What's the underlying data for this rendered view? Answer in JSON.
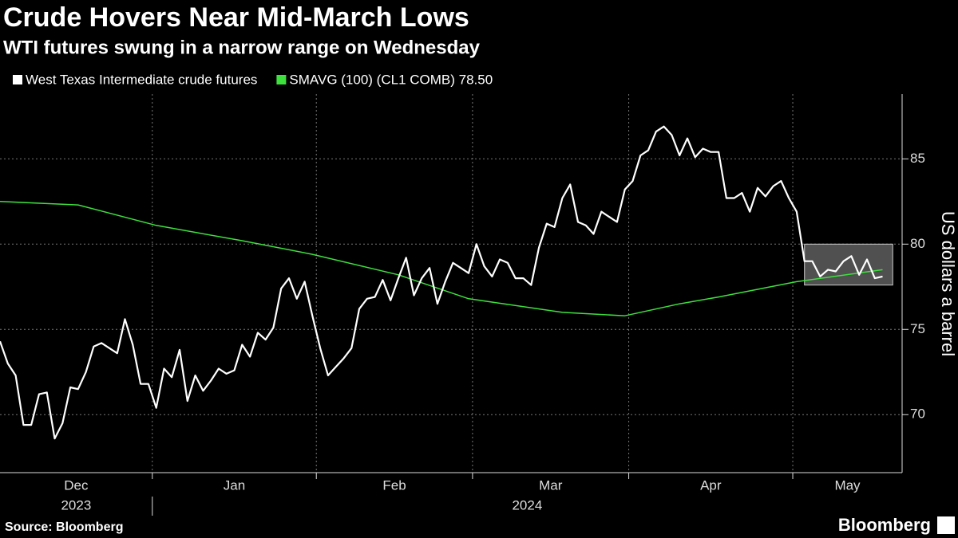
{
  "chart_data": {
    "type": "line",
    "title": "Crude Hovers Near Mid-March Lows",
    "subtitle": "WTI futures swung in a narrow range on Wednesday",
    "y_axis_label": "US dollars a barrel",
    "source": "Source: Bloomberg",
    "brand": "Bloomberg",
    "series": [
      {
        "name": "West Texas Intermediate crude futures",
        "color": "#ffffff",
        "x": [
          0,
          1,
          2,
          3,
          4,
          5,
          6,
          7,
          8,
          9,
          10,
          11,
          12,
          13,
          14,
          15,
          16,
          17,
          18,
          19,
          20,
          21,
          22,
          23,
          24,
          25,
          26,
          27,
          28,
          29,
          30,
          31,
          32,
          33,
          34,
          35,
          36,
          37,
          38,
          39,
          40,
          41,
          42,
          43,
          44,
          45,
          46,
          47,
          48,
          49,
          50,
          51,
          52,
          53,
          54,
          55,
          56,
          57,
          58,
          59,
          60,
          61,
          62,
          63,
          64,
          65,
          66,
          67,
          68,
          69,
          70,
          71,
          72,
          73,
          74,
          75,
          76,
          77,
          78,
          79,
          80,
          81,
          82,
          83,
          84,
          85,
          86,
          87,
          88,
          89,
          90,
          91,
          92,
          93,
          94,
          95,
          96,
          97,
          98,
          99,
          100,
          101,
          102,
          103,
          104,
          105,
          106,
          107,
          108,
          109,
          110,
          111,
          112,
          113
        ],
        "values": [
          74.3,
          73.0,
          72.3,
          69.4,
          69.4,
          71.2,
          71.3,
          68.6,
          69.5,
          71.6,
          71.5,
          72.5,
          74.0,
          74.2,
          73.9,
          73.6,
          75.6,
          74.1,
          71.8,
          71.8,
          70.4,
          72.7,
          72.2,
          73.8,
          70.8,
          72.3,
          71.4,
          72.0,
          72.7,
          72.4,
          72.6,
          74.1,
          73.4,
          74.8,
          74.4,
          75.1,
          77.4,
          78.0,
          76.8,
          77.8,
          75.8,
          73.9,
          72.3,
          72.8,
          73.3,
          73.9,
          76.2,
          76.8,
          76.9,
          77.9,
          76.7,
          78.0,
          79.2,
          77.0,
          78.0,
          78.6,
          76.5,
          77.8,
          78.9,
          78.6,
          78.3,
          80.0,
          78.7,
          78.1,
          79.1,
          78.9,
          78.0,
          78.0,
          77.6,
          79.8,
          81.2,
          81.0,
          82.7,
          83.5,
          81.3,
          81.1,
          80.6,
          81.9,
          81.6,
          81.3,
          83.2,
          83.7,
          85.2,
          85.5,
          86.6,
          86.9,
          86.4,
          85.2,
          86.2,
          85.1,
          85.6,
          85.4,
          85.4,
          82.7,
          82.7,
          83.0,
          81.9,
          83.3,
          82.8,
          83.4,
          83.7,
          82.7,
          81.9,
          79.0,
          79.0,
          78.1,
          78.5,
          78.4,
          79.0,
          79.3,
          78.2,
          79.1,
          78.0,
          78.1
        ]
      },
      {
        "name": "SMAVG (100) (CL1 COMB) 78.50",
        "color": "#3ee03e",
        "x": [
          0,
          10,
          20,
          31,
          40,
          51,
          60,
          72,
          80,
          87,
          92,
          102,
          113
        ],
        "values": [
          82.5,
          82.3,
          81.1,
          80.2,
          79.4,
          78.2,
          76.8,
          76.0,
          75.8,
          76.5,
          76.9,
          77.8,
          78.5
        ]
      }
    ],
    "xlim": [
      0,
      115.5
    ],
    "xticks": [
      19.5,
      40.5,
      60.5,
      80.5,
      101.5
    ],
    "xtick_labels": [
      "Dec",
      "Jan",
      "Feb",
      "Mar",
      "Apr",
      "May"
    ],
    "year_labels": [
      "2023",
      "2024"
    ],
    "ylim": [
      66.6,
      88.8
    ],
    "yticks": [
      70,
      75,
      80,
      85
    ],
    "grid": true,
    "highlight": {
      "xlim": [
        103,
        114.3
      ],
      "ylim": [
        77.6,
        80
      ]
    }
  }
}
